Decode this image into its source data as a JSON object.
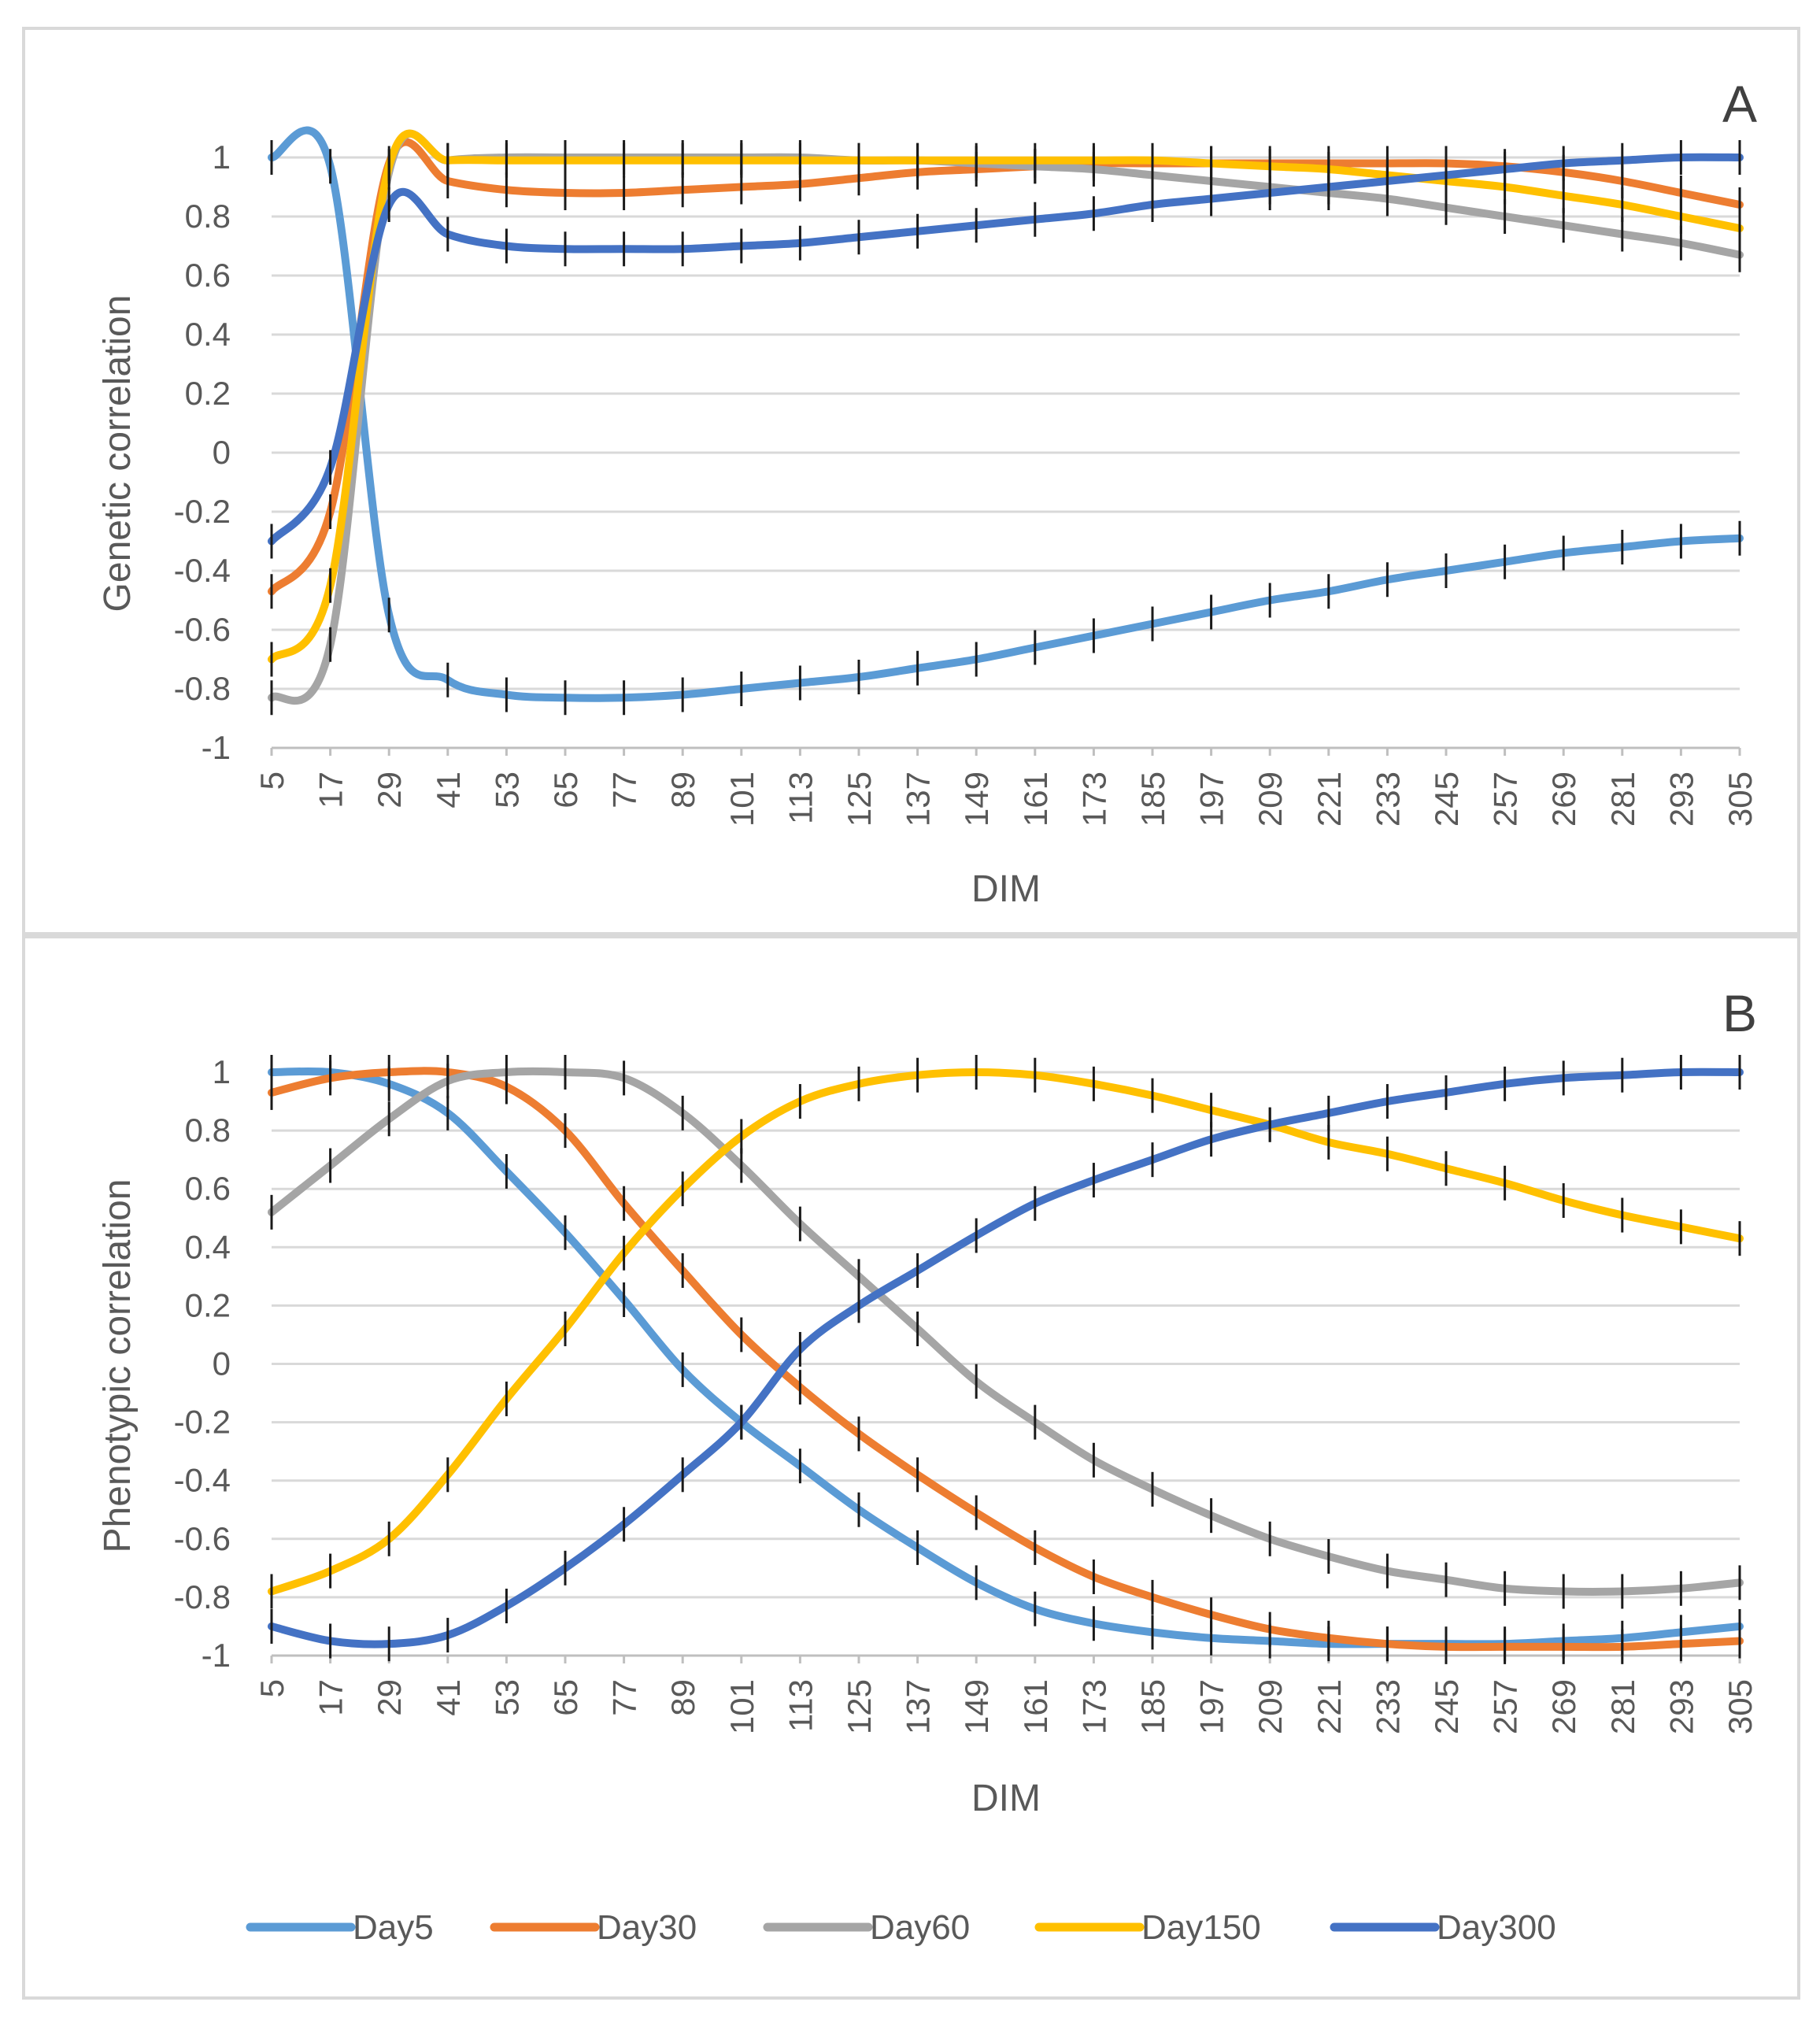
{
  "colors": {
    "Day5": "#5b9bd5",
    "Day30": "#ed7d31",
    "Day60": "#a5a5a5",
    "Day150": "#ffc000",
    "Day300": "#4472c4"
  },
  "legend": [
    "Day5",
    "Day30",
    "Day60",
    "Day150",
    "Day300"
  ],
  "chart_data": [
    {
      "type": "line",
      "panel": "A",
      "xlabel": "DIM",
      "ylabel": "Genetic correlation",
      "ylim": [
        -1,
        1
      ],
      "yticks": [
        "1",
        "0.8",
        "0.6",
        "0.4",
        "0.2",
        "0",
        "-0.2",
        "-0.4",
        "-0.6",
        "-0.8",
        "-1"
      ],
      "x": [
        5,
        17,
        29,
        41,
        53,
        65,
        77,
        89,
        101,
        113,
        125,
        137,
        149,
        161,
        173,
        185,
        197,
        209,
        221,
        233,
        245,
        257,
        269,
        281,
        293,
        305
      ],
      "series": [
        {
          "name": "Day5",
          "values": [
            1,
            0.97,
            -0.55,
            -0.77,
            -0.82,
            -0.83,
            -0.83,
            -0.82,
            -0.8,
            -0.78,
            -0.76,
            -0.73,
            -0.7,
            -0.66,
            -0.62,
            -0.58,
            -0.54,
            -0.5,
            -0.47,
            -0.43,
            -0.4,
            -0.37,
            -0.34,
            -0.32,
            -0.3,
            -0.29
          ]
        },
        {
          "name": "Day30",
          "values": [
            -0.47,
            -0.2,
            0.98,
            0.92,
            0.89,
            0.88,
            0.88,
            0.89,
            0.9,
            0.91,
            0.93,
            0.95,
            0.96,
            0.97,
            0.98,
            0.98,
            0.98,
            0.98,
            0.98,
            0.98,
            0.98,
            0.97,
            0.95,
            0.92,
            0.88,
            0.84
          ]
        },
        {
          "name": "Day60",
          "values": [
            -0.83,
            -0.65,
            0.95,
            0.99,
            1,
            1,
            1,
            1,
            1,
            1,
            0.99,
            0.99,
            0.98,
            0.97,
            0.96,
            0.94,
            0.92,
            0.9,
            0.88,
            0.86,
            0.83,
            0.8,
            0.77,
            0.74,
            0.71,
            0.67
          ]
        },
        {
          "name": "Day150",
          "values": [
            -0.7,
            -0.45,
            0.97,
            0.99,
            0.99,
            0.99,
            0.99,
            0.99,
            0.99,
            0.99,
            0.99,
            0.99,
            0.99,
            0.99,
            0.99,
            0.99,
            0.98,
            0.97,
            0.96,
            0.94,
            0.92,
            0.9,
            0.87,
            0.84,
            0.8,
            0.76
          ]
        },
        {
          "name": "Day300",
          "values": [
            -0.3,
            -0.05,
            0.84,
            0.74,
            0.7,
            0.69,
            0.69,
            0.69,
            0.7,
            0.71,
            0.73,
            0.75,
            0.77,
            0.79,
            0.81,
            0.84,
            0.86,
            0.88,
            0.9,
            0.92,
            0.94,
            0.96,
            0.98,
            0.99,
            1,
            1
          ]
        }
      ]
    },
    {
      "type": "line",
      "panel": "B",
      "xlabel": "DIM",
      "ylabel": "Phenotypic correlation",
      "ylim": [
        -1,
        1
      ],
      "yticks": [
        "1",
        "0.8",
        "0.6",
        "0.4",
        "0.2",
        "0",
        "-0.2",
        "-0.4",
        "-0.6",
        "-0.8",
        "-1"
      ],
      "x": [
        5,
        17,
        29,
        41,
        53,
        65,
        77,
        89,
        101,
        113,
        125,
        137,
        149,
        161,
        173,
        185,
        197,
        209,
        221,
        233,
        245,
        257,
        269,
        281,
        293,
        305
      ],
      "series": [
        {
          "name": "Day5",
          "values": [
            1,
            1,
            0.96,
            0.86,
            0.66,
            0.45,
            0.22,
            -0.02,
            -0.2,
            -0.35,
            -0.5,
            -0.63,
            -0.75,
            -0.84,
            -0.89,
            -0.92,
            -0.94,
            -0.95,
            -0.96,
            -0.96,
            -0.96,
            -0.96,
            -0.95,
            -0.94,
            -0.92,
            -0.9
          ]
        },
        {
          "name": "Day30",
          "values": [
            0.93,
            0.98,
            1,
            1,
            0.95,
            0.8,
            0.55,
            0.32,
            0.1,
            -0.08,
            -0.24,
            -0.38,
            -0.51,
            -0.63,
            -0.73,
            -0.8,
            -0.86,
            -0.91,
            -0.94,
            -0.96,
            -0.97,
            -0.97,
            -0.97,
            -0.97,
            -0.96,
            -0.95
          ]
        },
        {
          "name": "Day60",
          "values": [
            0.52,
            0.68,
            0.84,
            0.97,
            1,
            1,
            0.98,
            0.86,
            0.68,
            0.48,
            0.3,
            0.12,
            -0.06,
            -0.2,
            -0.33,
            -0.43,
            -0.52,
            -0.6,
            -0.66,
            -0.71,
            -0.74,
            -0.77,
            -0.78,
            -0.78,
            -0.77,
            -0.75
          ]
        },
        {
          "name": "Day150",
          "values": [
            -0.78,
            -0.71,
            -0.6,
            -0.38,
            -0.12,
            0.12,
            0.38,
            0.6,
            0.78,
            0.9,
            0.96,
            0.99,
            1,
            0.99,
            0.96,
            0.92,
            0.87,
            0.82,
            0.76,
            0.72,
            0.67,
            0.62,
            0.56,
            0.51,
            0.47,
            0.43
          ]
        },
        {
          "name": "Day300",
          "values": [
            -0.9,
            -0.95,
            -0.96,
            -0.93,
            -0.83,
            -0.7,
            -0.55,
            -0.38,
            -0.2,
            0.05,
            0.2,
            0.32,
            0.44,
            0.55,
            0.63,
            0.7,
            0.77,
            0.82,
            0.86,
            0.9,
            0.93,
            0.96,
            0.98,
            0.99,
            1,
            1
          ]
        }
      ]
    }
  ]
}
